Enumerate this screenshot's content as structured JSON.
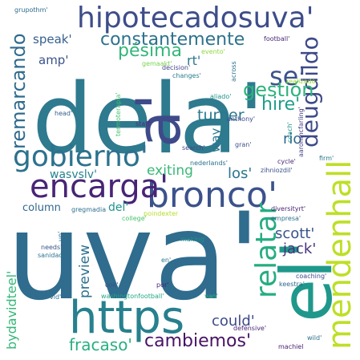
{
  "words": [
    {
      "text": "uva'",
      "color": "#2f6c8e"
    },
    {
      "text": "dela'",
      "color": "#2e7a8e"
    },
    {
      "text": "el'",
      "color": "#1f988b"
    },
    {
      "text": "https",
      "color": "#27808e"
    },
    {
      "text": "a'",
      "color": "#3e4a89"
    },
    {
      "text": "mendenhall",
      "color": "#bddf26"
    },
    {
      "text": "hipotecadosuva'",
      "color": "#3d4d8a"
    },
    {
      "text": "bronco'",
      "color": "#3b528b"
    },
    {
      "text": "encarga'",
      "color": "#482475"
    },
    {
      "text": "gobierno'",
      "color": "#2c728e"
    },
    {
      "text": "relatar",
      "color": "#25ac82"
    },
    {
      "text": "se'",
      "color": "#3b528b"
    },
    {
      "text": "deugdildo",
      "color": "#3e4989"
    },
    {
      "text": "constantemente",
      "color": "#2c728e"
    },
    {
      "text": "remarcando",
      "color": "#2f6b8e"
    },
    {
      "text": "gestión",
      "color": "#2db27d"
    },
    {
      "text": "hire'",
      "color": "#1f9e89"
    },
    {
      "text": "pésima",
      "color": "#32b67a"
    },
    {
      "text": "fracaso'",
      "color": "#29af7f"
    },
    {
      "text": "cambiemos'",
      "color": "#471365"
    },
    {
      "text": "could'",
      "color": "#3e4a89"
    },
    {
      "text": "turner",
      "color": "#2a778e"
    },
    {
      "text": "los'",
      "color": "#2a768e"
    },
    {
      "text": "rio",
      "color": "#31678e"
    },
    {
      "text": "scott'",
      "color": "#3a538b"
    },
    {
      "text": "jack'",
      "color": "#46327e"
    },
    {
      "text": "exiting",
      "color": "#38b977"
    },
    {
      "text": "preview",
      "color": "#2c718e"
    },
    {
      "text": "bydavidteel'",
      "color": "#35b779"
    },
    {
      "text": "speak'",
      "color": "#355f8d"
    },
    {
      "text": "amp'",
      "color": "#3b528b"
    },
    {
      "text": "rt'",
      "color": "#2a788e"
    },
    {
      "text": "way",
      "color": "#2a778e"
    },
    {
      "text": "wasvslv'",
      "color": "#26828e"
    },
    {
      "text": "del'",
      "color": "#1f948c"
    },
    {
      "text": "column",
      "color": "#31688e"
    },
    {
      "text": "grupothm'",
      "color": "#2e6e8e"
    },
    {
      "text": "evento'",
      "color": "#90d743"
    },
    {
      "text": "football'",
      "color": "#472878"
    },
    {
      "text": "gemaakt'",
      "color": "#7ad151"
    },
    {
      "text": "decision'",
      "color": "#414487"
    },
    {
      "text": "changes'",
      "color": "#287c8e"
    },
    {
      "text": "across",
      "color": "#2c728e"
    },
    {
      "text": "realizado",
      "color": "#a0da39"
    },
    {
      "text": "aliado'",
      "color": "#20928c"
    },
    {
      "text": "anthony'",
      "color": "#3e4a89"
    },
    {
      "text": "head'",
      "color": "#355f8d"
    },
    {
      "text": "termoterapia'",
      "color": "#46c06f"
    },
    {
      "text": "staff'",
      "color": "#46327e"
    },
    {
      "text": "gran'",
      "color": "#3b528b"
    },
    {
      "text": "coach'",
      "color": "#21918c"
    },
    {
      "text": "aaronmcfarling'",
      "color": "#433e85"
    },
    {
      "text": "search'",
      "color": "#3e4989"
    },
    {
      "text": "nederlands'",
      "color": "#2c728e"
    },
    {
      "text": "cycle'",
      "color": "#482878"
    },
    {
      "text": "firm'",
      "color": "#2a788e"
    },
    {
      "text": "zihniozdil'",
      "color": "#3b528b"
    },
    {
      "text": "gregmadia",
      "color": "#2e6f8e"
    },
    {
      "text": "poindexter",
      "color": "#b5de2b"
    },
    {
      "text": "diversityrt'",
      "color": "#482475"
    },
    {
      "text": "college'",
      "color": "#4ac16d"
    },
    {
      "text": "empresa'",
      "color": "#2d708e"
    },
    {
      "text": "un'",
      "color": "#2f6b8e"
    },
    {
      "text": "needs'",
      "color": "#3b528b"
    },
    {
      "text": "sanidad'",
      "color": "#2c728e"
    },
    {
      "text": "making'",
      "color": "#21918c"
    },
    {
      "text": "en'",
      "color": "#29798e"
    },
    {
      "text": "ook'",
      "color": "#3b528b"
    },
    {
      "text": "por'",
      "color": "#482878"
    },
    {
      "text": "keestra'",
      "color": "#31688e"
    },
    {
      "text": "coaching'",
      "color": "#3e4989"
    },
    {
      "text": "vid'",
      "color": "#2a768e"
    },
    {
      "text": "washingtonfootball'",
      "color": "#22a785"
    },
    {
      "text": "van'",
      "color": "#2db27d"
    },
    {
      "text": "defensive'",
      "color": "#482677"
    },
    {
      "text": "wild'",
      "color": "#2d708e"
    },
    {
      "text": "machiel",
      "color": "#481f70"
    }
  ]
}
